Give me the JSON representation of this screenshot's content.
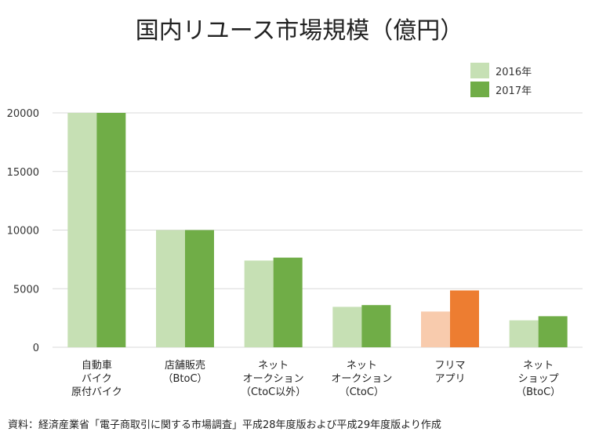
{
  "title": "国内リユース市場規模（億円）",
  "source": "資料：経済産業省「電子商取引に関する市場調査」平成28年度版および平成29年度版より作成",
  "colors": {
    "s2016": "#c6e0b4",
    "s2017": "#70ad47",
    "s2016_highlight": "#f8cbad",
    "s2017_highlight": "#ed7d31",
    "grid": "#d9d9d9"
  },
  "chart_data": {
    "type": "bar",
    "title": "国内リユース市場規模（億円）",
    "categories": [
      [
        "自動車",
        "バイク",
        "原付バイク"
      ],
      [
        "店舗販売",
        "（BtoC）"
      ],
      [
        "ネット",
        "オークション",
        "（CtoC以外）"
      ],
      [
        "ネット",
        "オークション",
        "（CtoC）"
      ],
      [
        "フリマ",
        "アプリ"
      ],
      [
        "ネット",
        "ショップ",
        "（BtoC）"
      ]
    ],
    "series": [
      {
        "name": "2016年",
        "values": [
          20000,
          10000,
          7400,
          3450,
          3050,
          2300
        ]
      },
      {
        "name": "2017年",
        "values": [
          20000,
          10000,
          7650,
          3600,
          4850,
          2650
        ]
      }
    ],
    "highlight_category_index": 4,
    "ylim": [
      0,
      20000
    ],
    "yticks": [
      "0",
      "5000",
      "10000",
      "15000",
      "20000"
    ],
    "ytick_values": [
      0,
      5000,
      10000,
      15000,
      20000
    ],
    "grid": true,
    "legend_position": "top-right"
  }
}
